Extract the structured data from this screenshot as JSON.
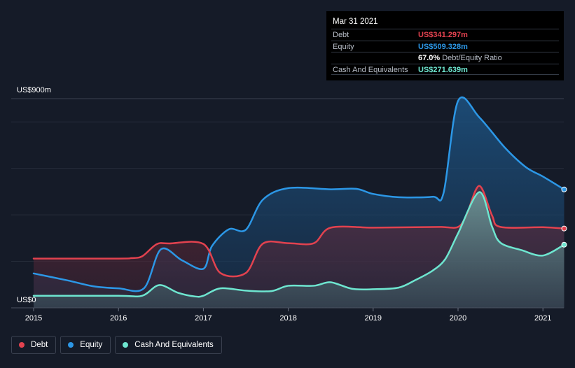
{
  "chart_data": {
    "type": "area",
    "title": "",
    "xlabel": "",
    "ylabel": "",
    "y_unit_labels": {
      "top": "US$900m",
      "bottom": "US$0"
    },
    "ylim": [
      0,
      900
    ],
    "xlim": [
      2015,
      2021.25
    ],
    "x_ticks": [
      "2015",
      "2016",
      "2017",
      "2018",
      "2019",
      "2020",
      "2021"
    ],
    "grid": true,
    "legend_position": "bottom-left",
    "series": [
      {
        "name": "Debt",
        "color": "#e2424f",
        "points": [
          [
            2015.0,
            212
          ],
          [
            2016.0,
            212
          ],
          [
            2016.15,
            214
          ],
          [
            2016.28,
            222
          ],
          [
            2016.45,
            274
          ],
          [
            2016.6,
            277
          ],
          [
            2017.0,
            275
          ],
          [
            2017.2,
            150
          ],
          [
            2017.5,
            150
          ],
          [
            2017.7,
            276
          ],
          [
            2018.0,
            278
          ],
          [
            2018.3,
            278
          ],
          [
            2018.5,
            345
          ],
          [
            2019.0,
            345
          ],
          [
            2019.5,
            347
          ],
          [
            2019.8,
            348
          ],
          [
            2020.0,
            348
          ],
          [
            2020.1,
            400
          ],
          [
            2020.25,
            525
          ],
          [
            2020.4,
            398
          ],
          [
            2020.5,
            348
          ],
          [
            2021.0,
            347
          ],
          [
            2021.25,
            341.297
          ]
        ]
      },
      {
        "name": "Equity",
        "color": "#2c97e6",
        "points": [
          [
            2015.0,
            148
          ],
          [
            2015.4,
            118
          ],
          [
            2015.7,
            93
          ],
          [
            2016.0,
            84
          ],
          [
            2016.3,
            84
          ],
          [
            2016.5,
            252
          ],
          [
            2016.75,
            204
          ],
          [
            2017.0,
            168
          ],
          [
            2017.1,
            265
          ],
          [
            2017.3,
            338
          ],
          [
            2017.5,
            336
          ],
          [
            2017.7,
            465
          ],
          [
            2018.0,
            515
          ],
          [
            2018.5,
            510
          ],
          [
            2018.8,
            512
          ],
          [
            2019.0,
            490
          ],
          [
            2019.3,
            476
          ],
          [
            2019.7,
            478
          ],
          [
            2019.83,
            495
          ],
          [
            2020.0,
            890
          ],
          [
            2020.25,
            820
          ],
          [
            2020.55,
            690
          ],
          [
            2020.8,
            605
          ],
          [
            2021.0,
            565
          ],
          [
            2021.25,
            509.328
          ]
        ]
      },
      {
        "name": "Cash And Equivalents",
        "color": "#6ee6d0",
        "points": [
          [
            2015.0,
            52
          ],
          [
            2016.0,
            52
          ],
          [
            2016.28,
            52
          ],
          [
            2016.48,
            98
          ],
          [
            2016.7,
            65
          ],
          [
            2016.9,
            49
          ],
          [
            2017.0,
            52
          ],
          [
            2017.2,
            84
          ],
          [
            2017.5,
            74
          ],
          [
            2017.8,
            72
          ],
          [
            2018.0,
            95
          ],
          [
            2018.3,
            95
          ],
          [
            2018.5,
            110
          ],
          [
            2018.75,
            82
          ],
          [
            2019.0,
            80
          ],
          [
            2019.3,
            87
          ],
          [
            2019.5,
            120
          ],
          [
            2019.7,
            160
          ],
          [
            2019.85,
            210
          ],
          [
            2020.0,
            320
          ],
          [
            2020.25,
            498
          ],
          [
            2020.4,
            350
          ],
          [
            2020.5,
            280
          ],
          [
            2020.75,
            248
          ],
          [
            2021.0,
            225
          ],
          [
            2021.25,
            271.639
          ]
        ]
      }
    ]
  },
  "tooltip": {
    "date": "Mar 31 2021",
    "rows": [
      {
        "key": "Debt",
        "value": "US$341.297m",
        "color": "#e2424f"
      },
      {
        "key": "Equity",
        "value": "US$509.328m",
        "color": "#2c97e6"
      },
      {
        "key": "",
        "value": "67.0%",
        "suffix": "Debt/Equity Ratio",
        "color": "#ffffff"
      },
      {
        "key": "Cash And Equivalents",
        "value": "US$271.639m",
        "color": "#6ee6d0"
      }
    ]
  },
  "legend": [
    {
      "label": "Debt",
      "color": "#e2424f"
    },
    {
      "label": "Equity",
      "color": "#2c97e6"
    },
    {
      "label": "Cash And Equivalents",
      "color": "#6ee6d0"
    }
  ]
}
